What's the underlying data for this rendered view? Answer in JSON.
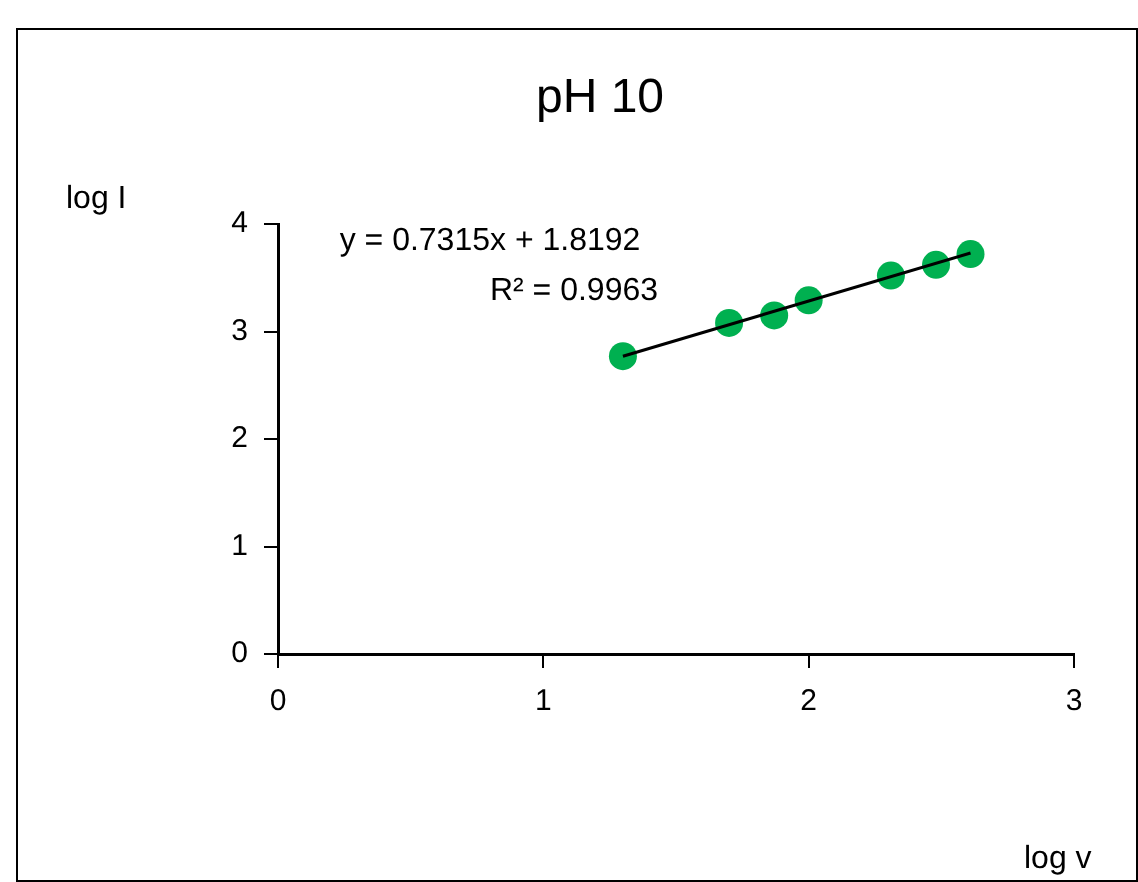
{
  "chart_data": {
    "type": "scatter",
    "title": "pH 10",
    "xlabel": "log v",
    "ylabel": "log I",
    "xlim": [
      0,
      3
    ],
    "xticks": [
      0,
      1,
      2,
      3
    ],
    "ylim": [
      0,
      4
    ],
    "yticks": [
      0,
      1,
      2,
      3,
      4
    ],
    "grid": false,
    "legend": false,
    "marker": "circle",
    "series": [
      {
        "color": "#00b050",
        "x": [
          1.3,
          1.7,
          1.87,
          2.0,
          2.31,
          2.48,
          2.61
        ],
        "values": [
          2.77,
          3.08,
          3.15,
          3.29,
          3.52,
          3.62,
          3.72
        ]
      },
      {
        "type": "line",
        "color": "#000000",
        "x": [
          1.3,
          2.61
        ],
        "values": [
          2.77,
          3.73
        ],
        "marker": "none",
        "line_style": "solid"
      }
    ],
    "annotations": [
      "y = 0.7315x + 1.8192",
      "R² = 0.9963"
    ]
  }
}
